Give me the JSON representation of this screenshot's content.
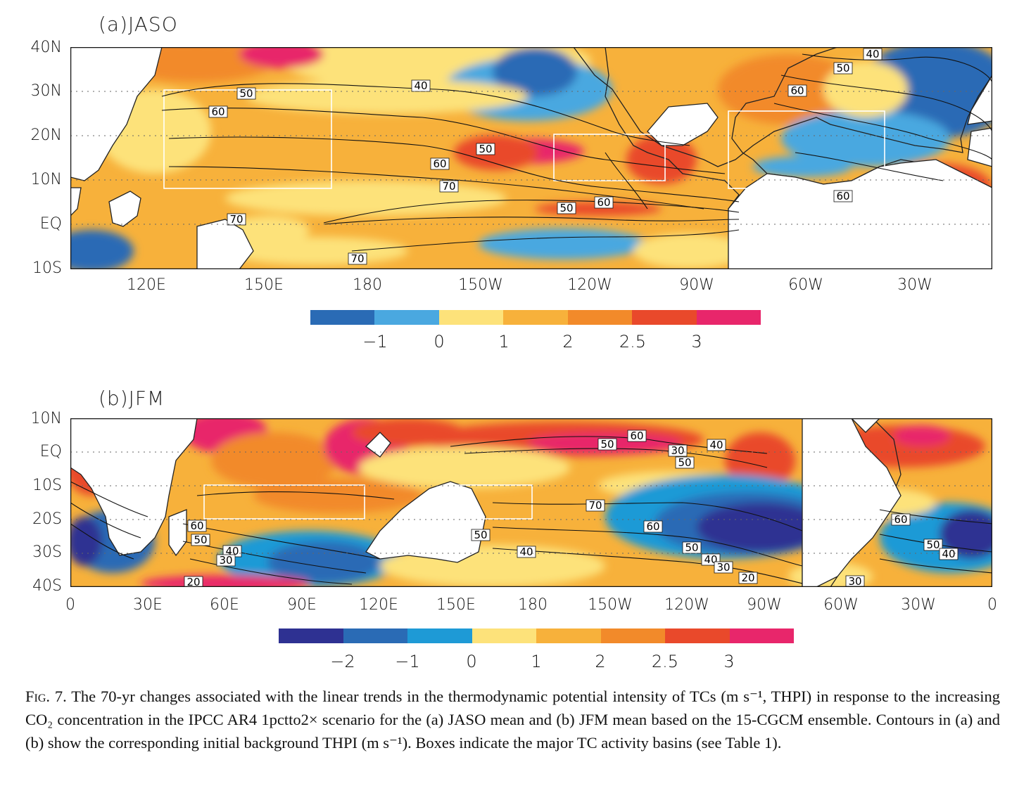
{
  "panel_a": {
    "title": "(a)JASO",
    "lat_ticks": [
      "40N",
      "30N",
      "20N",
      "10N",
      "EQ",
      "10S"
    ],
    "lon_ticks": [
      "120E",
      "150E",
      "180",
      "150W",
      "120W",
      "90W",
      "60W",
      "30W"
    ],
    "contour_labels": [
      "40",
      "50",
      "60",
      "50",
      "60",
      "70",
      "70",
      "70",
      "40",
      "50",
      "60",
      "50",
      "60",
      "60"
    ],
    "colorbar_labels": [
      "−1",
      "0",
      "1",
      "2",
      "2.5",
      "3"
    ],
    "colorbar_colors": [
      "#2a6bb5",
      "#4aa8e0",
      "#fde27a",
      "#f7b13b",
      "#f28a2a",
      "#e9492b",
      "#e8266b"
    ]
  },
  "panel_b": {
    "title": "(b)JFM",
    "lat_ticks": [
      "10N",
      "EQ",
      "10S",
      "20S",
      "30S",
      "40S"
    ],
    "lon_ticks": [
      "0",
      "30E",
      "60E",
      "90E",
      "120E",
      "150E",
      "180",
      "150W",
      "120W",
      "90W",
      "60W",
      "30W",
      "0"
    ],
    "contour_labels": [
      "60",
      "50",
      "40",
      "30",
      "20",
      "60",
      "50",
      "30",
      "40",
      "50",
      "70",
      "60",
      "50",
      "40",
      "50",
      "40",
      "30",
      "20",
      "60",
      "50",
      "40",
      "30"
    ],
    "colorbar_labels": [
      "−2",
      "−1",
      "0",
      "1",
      "2",
      "2.5",
      "3"
    ],
    "colorbar_colors": [
      "#2e3192",
      "#2a6bb5",
      "#1e9ad6",
      "#fde27a",
      "#f7b13b",
      "#f28a2a",
      "#e9492b",
      "#e8266b"
    ]
  },
  "caption": {
    "fig_label": "Fig. 7.",
    "text": "The 70-yr changes associated with the linear trends in the thermodynamic potential intensity of TCs (m s⁻¹, THPI) in response to the increasing CO₂ concentration in the IPCC AR4 1pctto2× scenario for the (a) JASO mean and (b) JFM mean based on the 15-CGCM ensemble. Contours in (a) and (b) show the corresponding initial background THPI (m s⁻¹). Boxes indicate the major TC activity basins (see Table 1)."
  }
}
